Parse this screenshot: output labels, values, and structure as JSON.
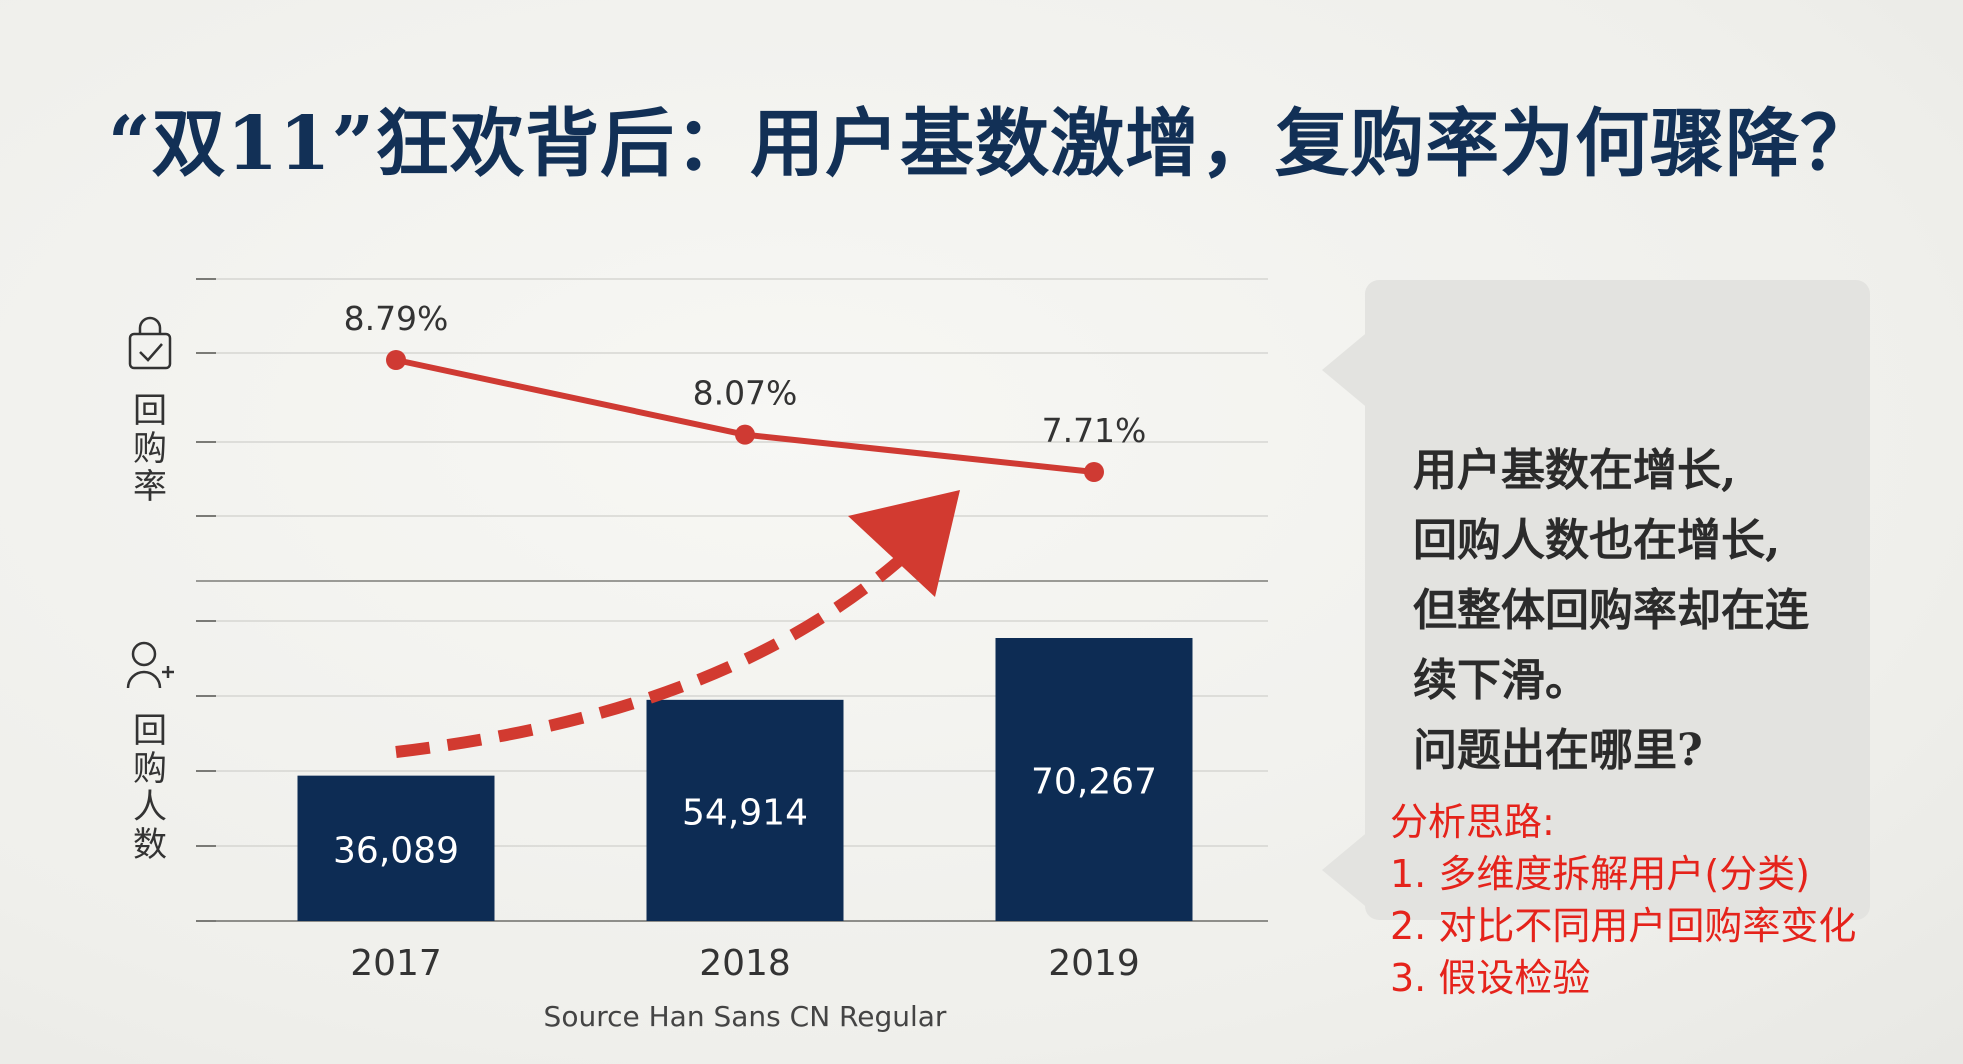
{
  "slide": {
    "title": "“双11”狂欢背后：用户基数激增，复购率为何骤降？",
    "source_note": "Source Han Sans CN Regular"
  },
  "callout": {
    "lines": [
      "用户基数在增长,",
      "回购人数也在增长,",
      "但整体回购率却在连",
      "续下滑。",
      "问题出在哪里?"
    ]
  },
  "analysis": {
    "heading": "分析思路:",
    "steps": [
      "1. 多维度拆解用户(分类)",
      "2. 对比不同用户回购率变化",
      "3. 假设检验"
    ]
  },
  "chart_data": [
    {
      "type": "line",
      "categories": [
        "2017",
        "2018",
        "2019"
      ],
      "ylabel": "回购率",
      "series": [
        {
          "values": [
            8.79,
            8.07,
            7.71
          ],
          "value_labels": [
            "8.79%",
            "8.07%",
            "7.71%"
          ],
          "color": "#cf3a33"
        }
      ],
      "grid": true,
      "icon": "shopping-bag-check-icon"
    },
    {
      "type": "bar",
      "categories": [
        "2017",
        "2018",
        "2019"
      ],
      "ylabel": "回购人数",
      "values": [
        36089,
        54914,
        70267
      ],
      "value_labels": [
        "36,089",
        "54,914",
        "70,267"
      ],
      "color": "#0d2c54",
      "grid": true,
      "icon": "user-add-icon",
      "annotation": "curved-dashed-arrow-up"
    }
  ],
  "colors": {
    "title": "#123056",
    "bar": "#0d2c54",
    "line": "#cf3a33",
    "arrow": "#d23a30",
    "analysis_text": "#e5231b",
    "callout_bg": "#e3e3e0"
  }
}
